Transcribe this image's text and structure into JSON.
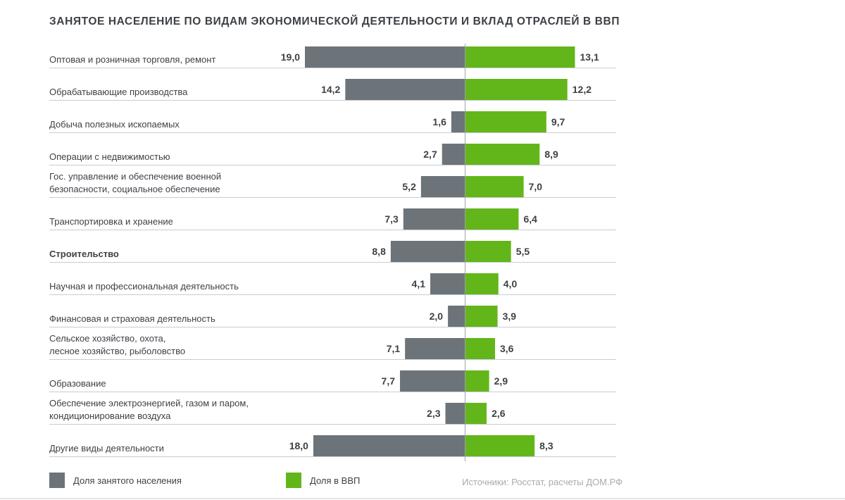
{
  "title": "ЗАНЯТОЕ НАСЕЛЕНИЕ ПО ВИДАМ ЭКОНОМИЧЕСКОЙ ДЕЯТЕЛЬНОСТИ И ВКЛАД ОТРАСЛЕЙ В ВВП",
  "legend": {
    "employment": "Доля занятого населения",
    "gdp": "Доля в ВВП"
  },
  "source": "Источники: Росстат, расчеты ДОМ.РФ",
  "colors": {
    "employment": "#6d7479",
    "gdp": "#63b61a",
    "rule": "#c9ccd0",
    "axis": "#9ea3a8"
  },
  "chart_data": {
    "type": "bar",
    "orientation": "horizontal-diverging",
    "categories": [
      {
        "label": [
          "Оптовая и розничная торговля, ремонт"
        ],
        "bold": false
      },
      {
        "label": [
          "Обрабатывающие производства"
        ],
        "bold": false
      },
      {
        "label": [
          "Добыча полезных ископаемых"
        ],
        "bold": false
      },
      {
        "label": [
          "Операции с недвижимостью"
        ],
        "bold": false
      },
      {
        "label": [
          "Гос. управление и обеспечение военной",
          "безопасности, социальное обеспечение"
        ],
        "bold": false
      },
      {
        "label": [
          "Транспортировка и хранение"
        ],
        "bold": false
      },
      {
        "label": [
          "Строительство"
        ],
        "bold": true
      },
      {
        "label": [
          "Научная и профессиональная деятельность"
        ],
        "bold": false
      },
      {
        "label": [
          "Финансовая и страховая деятельность"
        ],
        "bold": false
      },
      {
        "label": [
          "Сельское хозяйство, охота,",
          "лесное хозяйство, рыболовство"
        ],
        "bold": false
      },
      {
        "label": [
          "Образование"
        ],
        "bold": false
      },
      {
        "label": [
          "Обеспечение электроэнергией, газом и паром,",
          "кондиционирование воздуха"
        ],
        "bold": false
      },
      {
        "label": [
          "Другие виды деятельности"
        ],
        "bold": false
      }
    ],
    "series": [
      {
        "name": "Доля занятого населения",
        "direction": "left",
        "values": [
          19.0,
          14.2,
          1.6,
          2.7,
          5.2,
          7.3,
          8.8,
          4.1,
          2.0,
          7.1,
          7.7,
          2.3,
          18.0
        ],
        "labels": [
          "19,0",
          "14,2",
          "1,6",
          "2,7",
          "5,2",
          "7,3",
          "8,8",
          "4,1",
          "2,0",
          "7,1",
          "7,7",
          "2,3",
          "18,0"
        ]
      },
      {
        "name": "Доля в ВВП",
        "direction": "right",
        "values": [
          13.1,
          12.2,
          9.7,
          8.9,
          7.0,
          6.4,
          5.5,
          4.0,
          3.9,
          3.6,
          2.9,
          2.6,
          8.3
        ],
        "labels": [
          "13,1",
          "12,2",
          "9,7",
          "8,9",
          "7,0",
          "6,4",
          "5,5",
          "4,0",
          "3,9",
          "3,6",
          "2,9",
          "2,6",
          "8,3"
        ]
      }
    ],
    "xlim": [
      0,
      19.0
    ],
    "legend_position": "bottom-left",
    "grid": false
  }
}
